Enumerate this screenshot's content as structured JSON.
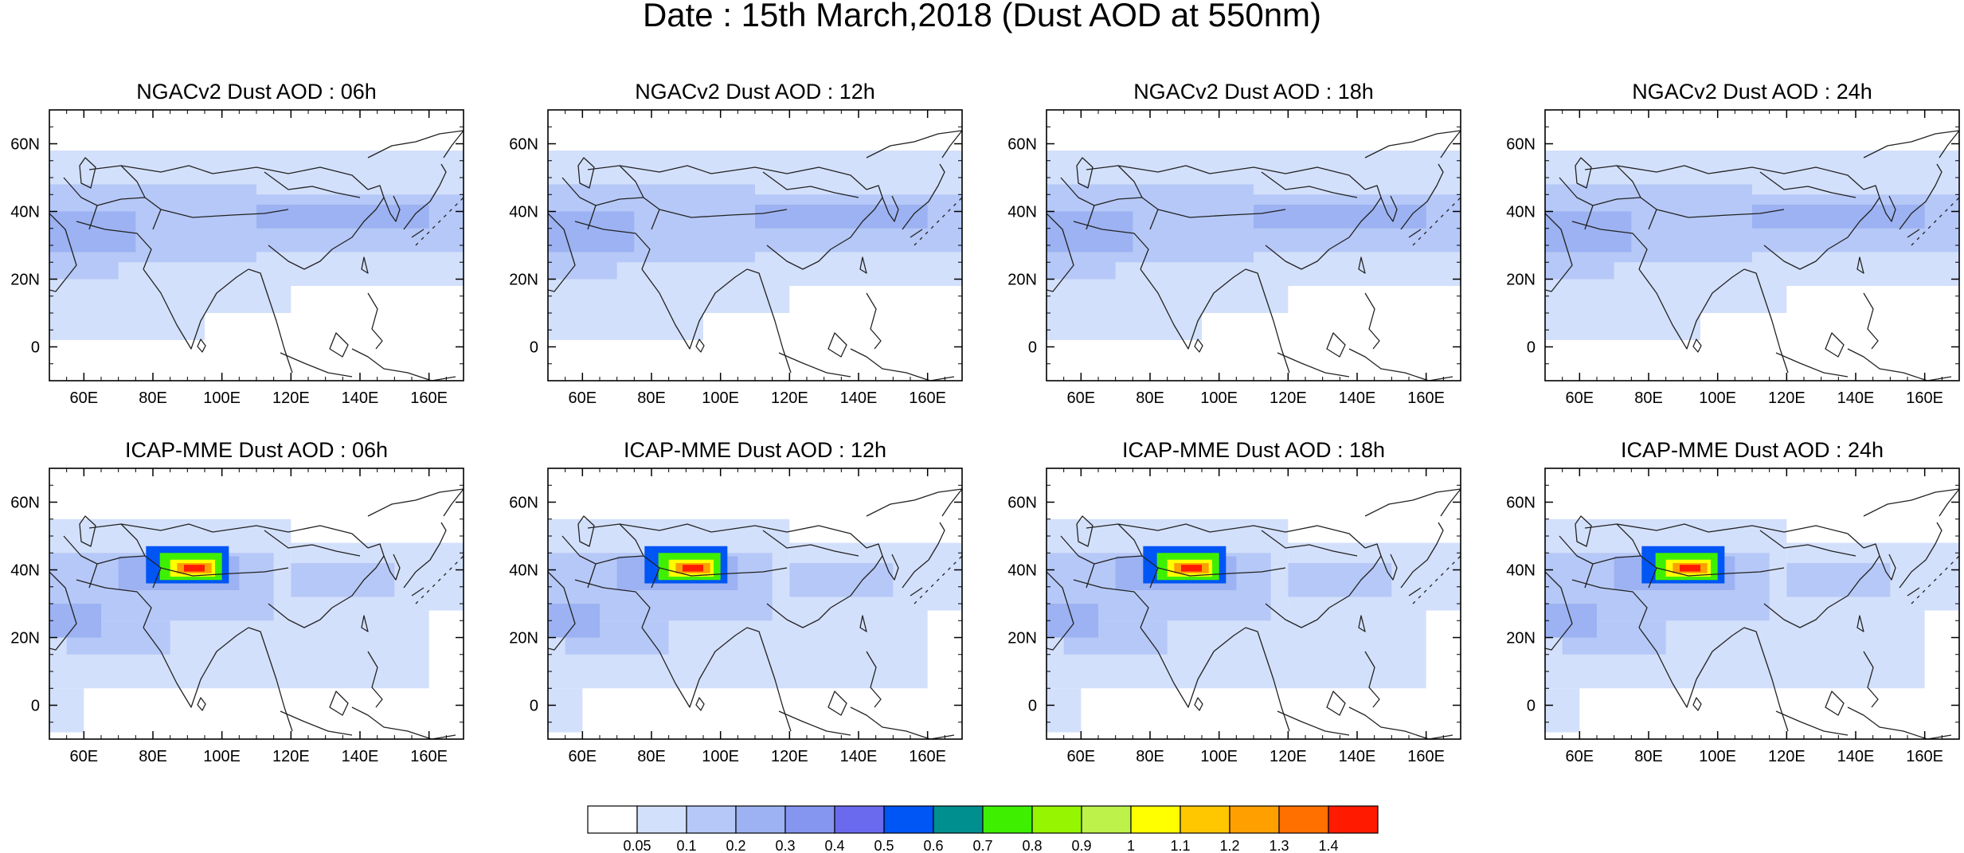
{
  "figure_title": "Date : 15th March,2018 (Dust AOD at 550nm)",
  "x_tick_labels": [
    "60E",
    "80E",
    "100E",
    "120E",
    "140E",
    "160E"
  ],
  "x_tick_values": [
    60,
    80,
    100,
    120,
    140,
    160
  ],
  "y_tick_labels": [
    "60N",
    "40N",
    "20N",
    "0"
  ],
  "y_tick_values": [
    60,
    40,
    20,
    0
  ],
  "lon_range": [
    50,
    170
  ],
  "lat_range": [
    -10,
    70
  ],
  "panels": [
    {
      "title": "NGACv2 Dust AOD : 06h",
      "model": "NGACv2",
      "hour": "06h"
    },
    {
      "title": "NGACv2 Dust AOD : 12h",
      "model": "NGACv2",
      "hour": "12h"
    },
    {
      "title": "NGACv2 Dust AOD : 18h",
      "model": "NGACv2",
      "hour": "18h"
    },
    {
      "title": "NGACv2 Dust AOD : 24h",
      "model": "NGACv2",
      "hour": "24h"
    },
    {
      "title": "ICAP-MME Dust AOD : 06h",
      "model": "ICAP-MME",
      "hour": "06h"
    },
    {
      "title": "ICAP-MME Dust AOD : 12h",
      "model": "ICAP-MME",
      "hour": "12h"
    },
    {
      "title": "ICAP-MME Dust AOD : 18h",
      "model": "ICAP-MME",
      "hour": "18h"
    },
    {
      "title": "ICAP-MME Dust AOD : 24h",
      "model": "ICAP-MME",
      "hour": "24h"
    }
  ],
  "colorbar": {
    "labels": [
      "0.05",
      "0.1",
      "0.2",
      "0.3",
      "0.4",
      "0.5",
      "0.6",
      "0.7",
      "0.8",
      "0.9",
      "1",
      "1.1",
      "1.2",
      "1.3",
      "1.4"
    ],
    "colors": [
      "#ffffff",
      "#d3e0fb",
      "#b6c8f7",
      "#9cb2f2",
      "#8596f0",
      "#6a6aef",
      "#0055f5",
      "#008f8f",
      "#3ef000",
      "#96f500",
      "#bdf24a",
      "#ffff00",
      "#ffc700",
      "#ff9f00",
      "#ff7000",
      "#ff1a00"
    ]
  },
  "colors": {
    "aod_0_05_0_1": "#d3e0fb",
    "aod_0_1_0_2": "#b6c8f7",
    "aod_0_2_0_3": "#9cb2f2",
    "aod_0_3_0_4": "#8596f0",
    "aod_high": "#ff1a00"
  }
}
